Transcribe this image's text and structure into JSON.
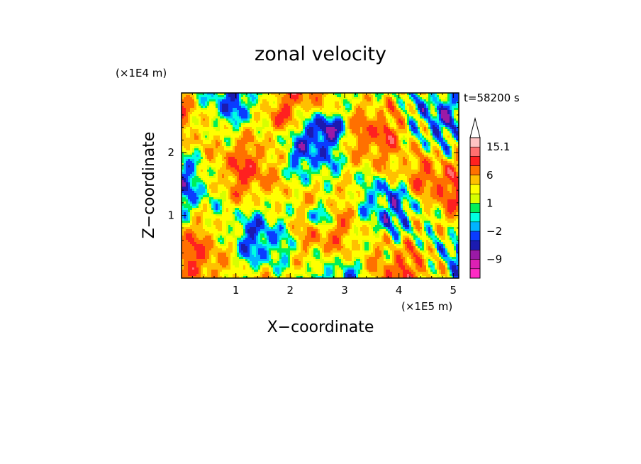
{
  "chart_data": {
    "type": "heatmap",
    "title": "zonal velocity",
    "xlabel": "X−coordinate",
    "ylabel": "Z−coordinate",
    "x_unit": "(×1E5 m)",
    "y_unit": "(×1E4 m)",
    "time_label": "t=58200 s",
    "xlim": [
      0,
      5.1
    ],
    "ylim": [
      0,
      2.95
    ],
    "x_ticks": [
      1,
      2,
      3,
      4,
      5
    ],
    "y_ticks": [
      1,
      2
    ],
    "x_tick_labels": [
      "1",
      "2",
      "3",
      "4",
      "5"
    ],
    "y_tick_labels": [
      "1",
      "2"
    ],
    "colorbar": {
      "levels": [
        -15,
        -12,
        -9,
        -6,
        -4,
        -2,
        -1,
        0,
        1,
        2,
        4,
        6,
        9,
        12,
        15.1
      ],
      "colors": [
        "#ff2bc4",
        "#dd20b4",
        "#9a1aa6",
        "#1b1bb0",
        "#0a3cff",
        "#00b4ff",
        "#00ffe0",
        "#00ef58",
        "#d6ff00",
        "#ffff00",
        "#ffc000",
        "#ff7000",
        "#ff2020",
        "#ff7070",
        "#ffc3c3"
      ],
      "tick_labels": [
        "15.1",
        "6",
        "1",
        "−2",
        "−9"
      ],
      "tick_values": [
        15.1,
        6,
        1,
        -2,
        -9
      ]
    }
  }
}
